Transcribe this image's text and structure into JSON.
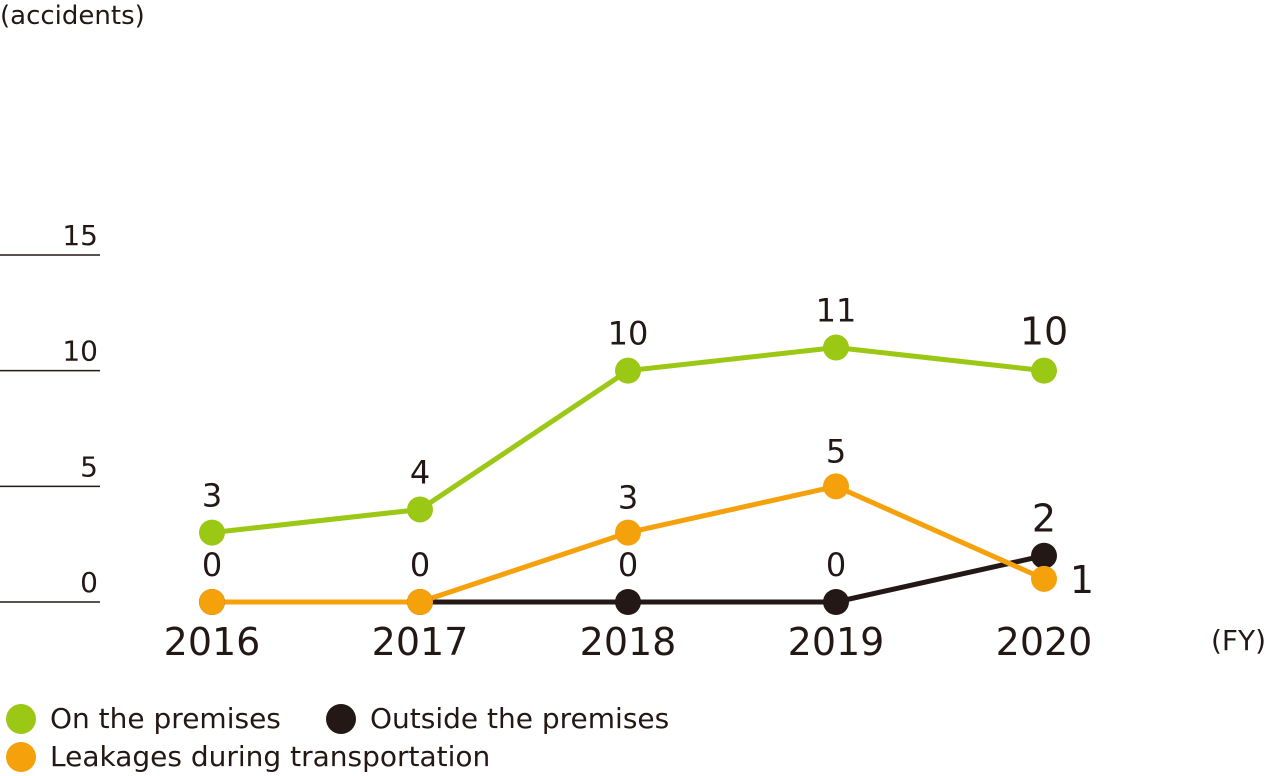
{
  "chart_data": {
    "type": "line",
    "yunit": "(accidents)",
    "xunit": "(FY)",
    "categories": [
      "2016",
      "2017",
      "2018",
      "2019",
      "2020"
    ],
    "ylim": [
      0,
      15
    ],
    "yticks": [
      0,
      5,
      10,
      15
    ],
    "yticklabels": [
      "0",
      "5",
      "10",
      "15"
    ],
    "series": [
      {
        "name": "On the premises",
        "color": "#9bc814",
        "values": [
          3,
          4,
          10,
          11,
          10
        ],
        "labels": [
          "3",
          "4",
          "10",
          "11",
          "10"
        ]
      },
      {
        "name": "Outside the premises",
        "color": "#231815",
        "values": [
          0,
          0,
          0,
          0,
          2
        ],
        "labels": [
          "",
          "",
          "",
          "",
          "2"
        ]
      },
      {
        "name": "Leakages during transportation",
        "color": "#f4a10c",
        "values": [
          0,
          0,
          3,
          5,
          1
        ],
        "labels": [
          "0",
          "0",
          "3",
          "5",
          "1"
        ]
      }
    ],
    "zero_labels": [
      "0",
      "0",
      "0",
      "0"
    ],
    "legend": "bottom-left",
    "grid": false
  }
}
